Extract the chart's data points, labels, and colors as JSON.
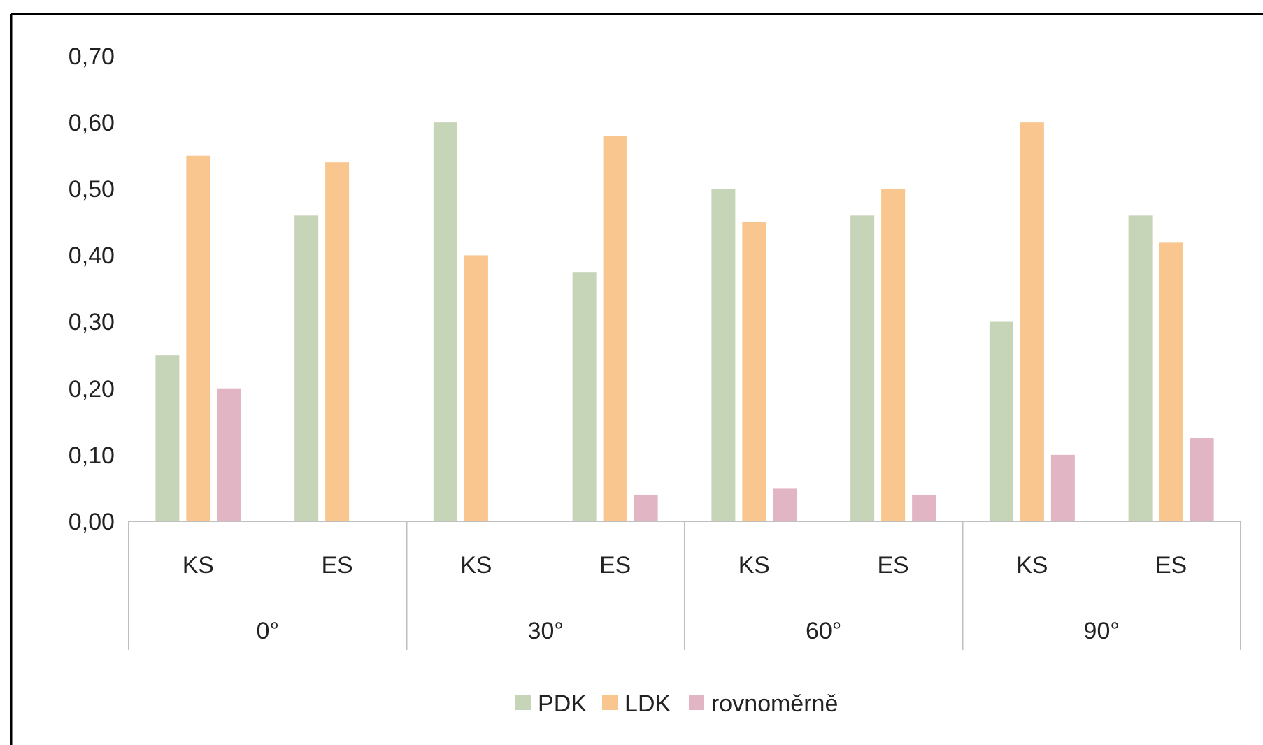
{
  "chart_data": {
    "type": "bar",
    "categories": [
      "KS",
      "ES",
      "KS",
      "ES",
      "KS",
      "ES",
      "KS",
      "ES"
    ],
    "annotations": [
      "0°",
      "30°",
      "60°",
      "90°"
    ],
    "series": [
      {
        "name": "PDK",
        "color": "#c6d4b8",
        "values": [
          0.25,
          0.46,
          0.6,
          0.375,
          0.5,
          0.46,
          0.3,
          0.46
        ]
      },
      {
        "name": "LDK",
        "color": "#f8c68e",
        "values": [
          0.55,
          0.54,
          0.4,
          0.58,
          0.45,
          0.5,
          0.6,
          0.42
        ]
      },
      {
        "name": "rovnoměrně",
        "color": "#e2b5c4",
        "values": [
          0.2,
          0,
          0,
          0.04,
          0.05,
          0.04,
          0.1,
          0.125
        ]
      }
    ],
    "ylim": [
      0,
      0.7
    ],
    "yticks": [
      {
        "value": 0,
        "label": "0,00"
      },
      {
        "value": 0.1,
        "label": "0,10"
      },
      {
        "value": 0.2,
        "label": "0,20"
      },
      {
        "value": 0.3,
        "label": "0,30"
      },
      {
        "value": 0.4,
        "label": "0,40"
      },
      {
        "value": 0.5,
        "label": "0,50"
      },
      {
        "value": 0.6,
        "label": "0,60"
      },
      {
        "value": 0.7,
        "label": "0,70"
      }
    ],
    "grid": false,
    "legend": "bottom"
  }
}
